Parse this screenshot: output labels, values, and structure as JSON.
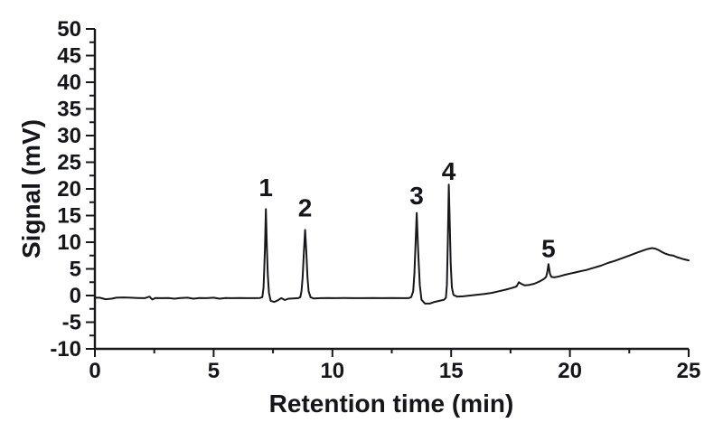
{
  "chart_data": {
    "type": "line",
    "title": "",
    "xlabel": "Retention time (min)",
    "ylabel": "Signal (mV)",
    "xlim": [
      0,
      25
    ],
    "ylim": [
      -10,
      50
    ],
    "x_ticks": [
      0,
      5,
      10,
      15,
      20,
      25
    ],
    "y_ticks": [
      -10,
      -5,
      0,
      5,
      10,
      15,
      20,
      25,
      30,
      35,
      40,
      45,
      50
    ],
    "minor_tick_step": 2.5,
    "grid": false,
    "legend": false,
    "background_color": "#ffffff",
    "line_color": "#17171c",
    "axis_color": "#17171c",
    "peaks": [
      {
        "label": "1",
        "x": 7.2,
        "y": 16.2,
        "label_y": 20.3
      },
      {
        "label": "2",
        "x": 8.85,
        "y": 12.3,
        "label_y": 16.5
      },
      {
        "label": "3",
        "x": 13.55,
        "y": 15.5,
        "label_y": 18.8
      },
      {
        "label": "4",
        "x": 14.9,
        "y": 20.8,
        "label_y": 23.4
      },
      {
        "label": "5",
        "x": 19.1,
        "y": 5.9,
        "label_y": 8.9
      }
    ],
    "series": [
      {
        "name": "chromatogram signal",
        "points": [
          [
            0.0,
            -0.4
          ],
          [
            0.2,
            -0.4
          ],
          [
            0.45,
            -0.7
          ],
          [
            0.7,
            -0.6
          ],
          [
            0.9,
            -0.4
          ],
          [
            1.2,
            -0.35
          ],
          [
            1.5,
            -0.4
          ],
          [
            1.8,
            -0.45
          ],
          [
            2.1,
            -0.5
          ],
          [
            2.3,
            -0.2
          ],
          [
            2.42,
            -0.75
          ],
          [
            2.55,
            -0.45
          ],
          [
            2.8,
            -0.5
          ],
          [
            3.1,
            -0.45
          ],
          [
            3.35,
            -0.6
          ],
          [
            3.6,
            -0.45
          ],
          [
            3.9,
            -0.4
          ],
          [
            4.15,
            -0.6
          ],
          [
            4.4,
            -0.45
          ],
          [
            4.7,
            -0.5
          ],
          [
            5.0,
            -0.4
          ],
          [
            5.25,
            -0.6
          ],
          [
            5.5,
            -0.45
          ],
          [
            5.8,
            -0.5
          ],
          [
            6.1,
            -0.45
          ],
          [
            6.4,
            -0.5
          ],
          [
            6.7,
            -0.5
          ],
          [
            6.95,
            -0.45
          ],
          [
            7.05,
            -0.3
          ],
          [
            7.1,
            1.5
          ],
          [
            7.13,
            5.0
          ],
          [
            7.16,
            9.0
          ],
          [
            7.2,
            16.2
          ],
          [
            7.24,
            9.0
          ],
          [
            7.28,
            4.0
          ],
          [
            7.33,
            0.5
          ],
          [
            7.4,
            -1.0
          ],
          [
            7.55,
            -1.2
          ],
          [
            7.7,
            -0.9
          ],
          [
            7.85,
            -0.5
          ],
          [
            8.0,
            -0.85
          ],
          [
            8.15,
            -0.6
          ],
          [
            8.35,
            -0.55
          ],
          [
            8.55,
            -0.5
          ],
          [
            8.65,
            -0.3
          ],
          [
            8.7,
            0.8
          ],
          [
            8.75,
            3.5
          ],
          [
            8.8,
            8.3
          ],
          [
            8.85,
            12.3
          ],
          [
            8.9,
            8.3
          ],
          [
            8.95,
            3.5
          ],
          [
            9.0,
            0.8
          ],
          [
            9.08,
            -0.3
          ],
          [
            9.2,
            -0.55
          ],
          [
            9.5,
            -0.5
          ],
          [
            9.8,
            -0.45
          ],
          [
            10.1,
            -0.5
          ],
          [
            10.5,
            -0.45
          ],
          [
            10.9,
            -0.5
          ],
          [
            11.3,
            -0.5
          ],
          [
            11.7,
            -0.45
          ],
          [
            12.1,
            -0.5
          ],
          [
            12.5,
            -0.45
          ],
          [
            12.9,
            -0.5
          ],
          [
            13.2,
            -0.5
          ],
          [
            13.32,
            -0.3
          ],
          [
            13.4,
            0.8
          ],
          [
            13.45,
            4.0
          ],
          [
            13.5,
            9.6
          ],
          [
            13.55,
            15.5
          ],
          [
            13.6,
            9.6
          ],
          [
            13.63,
            6.5
          ],
          [
            13.68,
            2.0
          ],
          [
            13.75,
            -0.8
          ],
          [
            13.9,
            -1.5
          ],
          [
            14.1,
            -1.5
          ],
          [
            14.3,
            -1.2
          ],
          [
            14.5,
            -1.0
          ],
          [
            14.7,
            -0.8
          ],
          [
            14.78,
            -0.4
          ],
          [
            14.82,
            2.0
          ],
          [
            14.86,
            10.0
          ],
          [
            14.9,
            20.8
          ],
          [
            14.94,
            14.0
          ],
          [
            14.98,
            6.0
          ],
          [
            15.03,
            1.5
          ],
          [
            15.1,
            0.1
          ],
          [
            15.25,
            -0.2
          ],
          [
            15.5,
            -0.15
          ],
          [
            15.8,
            0.0
          ],
          [
            16.1,
            0.15
          ],
          [
            16.4,
            0.3
          ],
          [
            16.7,
            0.5
          ],
          [
            17.0,
            0.8
          ],
          [
            17.3,
            1.1
          ],
          [
            17.55,
            1.4
          ],
          [
            17.75,
            1.7
          ],
          [
            17.85,
            2.5
          ],
          [
            17.95,
            2.2
          ],
          [
            18.1,
            1.9
          ],
          [
            18.3,
            2.0
          ],
          [
            18.5,
            2.2
          ],
          [
            18.7,
            2.6
          ],
          [
            18.9,
            3.1
          ],
          [
            19.0,
            3.5
          ],
          [
            19.05,
            4.4
          ],
          [
            19.1,
            5.9
          ],
          [
            19.16,
            4.1
          ],
          [
            19.22,
            3.5
          ],
          [
            19.35,
            3.4
          ],
          [
            19.55,
            3.6
          ],
          [
            19.8,
            3.9
          ],
          [
            20.1,
            4.2
          ],
          [
            20.4,
            4.5
          ],
          [
            20.7,
            4.8
          ],
          [
            21.0,
            5.2
          ],
          [
            21.3,
            5.6
          ],
          [
            21.6,
            6.1
          ],
          [
            21.9,
            6.5
          ],
          [
            22.2,
            7.0
          ],
          [
            22.5,
            7.5
          ],
          [
            22.8,
            8.0
          ],
          [
            23.05,
            8.4
          ],
          [
            23.25,
            8.7
          ],
          [
            23.45,
            8.9
          ],
          [
            23.6,
            8.8
          ],
          [
            23.75,
            8.5
          ],
          [
            23.9,
            8.1
          ],
          [
            24.05,
            7.8
          ],
          [
            24.2,
            7.6
          ],
          [
            24.35,
            7.5
          ],
          [
            24.5,
            7.2
          ],
          [
            24.65,
            7.0
          ],
          [
            24.8,
            6.8
          ],
          [
            24.9,
            6.7
          ],
          [
            25.0,
            6.6
          ]
        ]
      }
    ]
  }
}
